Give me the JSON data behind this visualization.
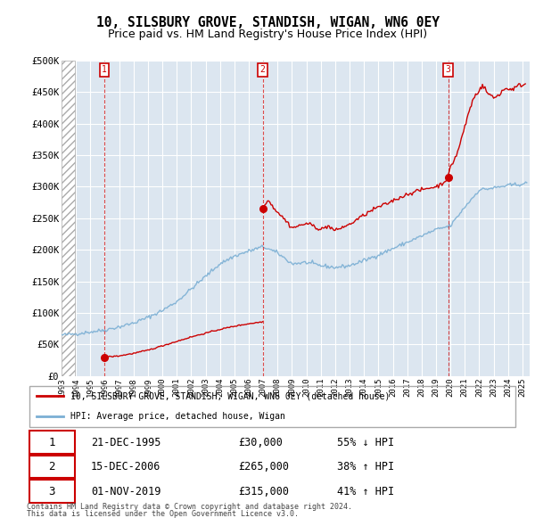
{
  "title": "10, SILSBURY GROVE, STANDISH, WIGAN, WN6 0EY",
  "subtitle": "Price paid vs. HM Land Registry's House Price Index (HPI)",
  "title_fontsize": 10.5,
  "subtitle_fontsize": 9,
  "ylabel_ticks": [
    "£0",
    "£50K",
    "£100K",
    "£150K",
    "£200K",
    "£250K",
    "£300K",
    "£350K",
    "£400K",
    "£450K",
    "£500K"
  ],
  "ytick_values": [
    0,
    50000,
    100000,
    150000,
    200000,
    250000,
    300000,
    350000,
    400000,
    450000,
    500000
  ],
  "xlim_start": 1993.0,
  "xlim_end": 2025.5,
  "ylim": [
    0,
    500000
  ],
  "background_color": "#ffffff",
  "plot_bg_color": "#dce6f0",
  "grid_color": "#ffffff",
  "sale_dates": [
    1995.97,
    2006.96,
    2019.84
  ],
  "sale_prices": [
    30000,
    265000,
    315000
  ],
  "sale_labels": [
    "1",
    "2",
    "3"
  ],
  "sale_date_strs": [
    "21-DEC-1995",
    "15-DEC-2006",
    "01-NOV-2019"
  ],
  "sale_price_strs": [
    "£30,000",
    "£265,000",
    "£315,000"
  ],
  "sale_hpi_strs": [
    "55% ↓ HPI",
    "38% ↑ HPI",
    "41% ↑ HPI"
  ],
  "legend_line1": "10, SILSBURY GROVE, STANDISH, WIGAN, WN6 0EY (detached house)",
  "legend_line2": "HPI: Average price, detached house, Wigan",
  "footer_line1": "Contains HM Land Registry data © Crown copyright and database right 2024.",
  "footer_line2": "This data is licensed under the Open Government Licence v3.0.",
  "red_color": "#cc0000",
  "blue_color": "#7bafd4",
  "marker_color": "#cc0000"
}
